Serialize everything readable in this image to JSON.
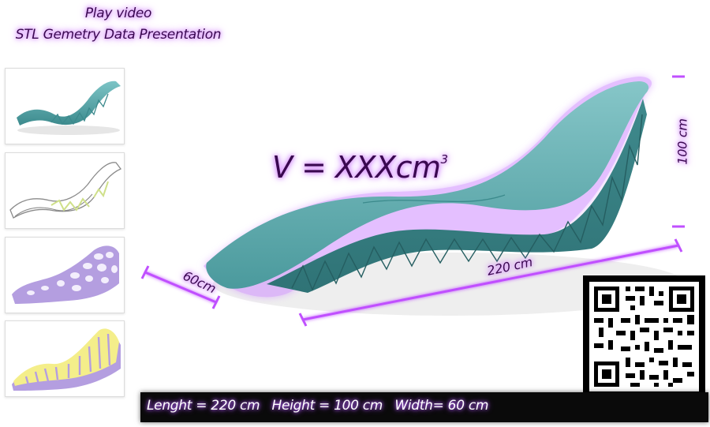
{
  "header": {
    "play_video": "Play video",
    "subtitle": "STL Gemetry Data Presentation"
  },
  "thumbnails": [
    {
      "name": "teal-render",
      "color": "#4a9ea0"
    },
    {
      "name": "wireframe",
      "color": "#9a9a9a"
    },
    {
      "name": "voronoi-lavender",
      "color": "#b49ee0"
    },
    {
      "name": "ribbed-yellow",
      "color": "#f4ee8a"
    }
  ],
  "main": {
    "volume_label": "V = XXXcm",
    "volume_exp": "3",
    "length_label": "220 cm",
    "width_label": "60cm",
    "height_label": "100 cm",
    "model_color": "#4c9ea1",
    "dim_color": "#b040e0"
  },
  "bottom_bar": {
    "specs": "Lenght = 220 cm   Height = 100 cm   Width= 60 cm"
  }
}
